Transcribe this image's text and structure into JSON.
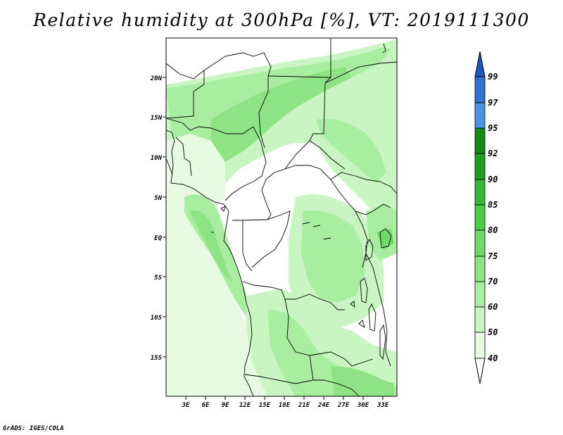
{
  "title": "Relative humidity at 300hPa [%], VT: 2019111300",
  "credit": "GrADS: IGES/COLA",
  "map": {
    "lat_ticks": [
      "20N",
      "15N",
      "10N",
      "5N",
      "EQ",
      "5S",
      "10S",
      "15S"
    ],
    "lon_ticks": [
      "3E",
      "6E",
      "9E",
      "12E",
      "15E",
      "18E",
      "21E",
      "24E",
      "27E",
      "30E",
      "33E"
    ],
    "lon_range": [
      0,
      35
    ],
    "lat_range": [
      -20,
      25
    ]
  },
  "colorbar": {
    "labels": [
      "40",
      "50",
      "60",
      "70",
      "75",
      "80",
      "85",
      "90",
      "92",
      "95",
      "97",
      "99"
    ],
    "colors": [
      "#ffffff",
      "#e7fbe3",
      "#c9f5c2",
      "#a9eda0",
      "#8ee485",
      "#6fda65",
      "#4bcd45",
      "#35b833",
      "#1e9e1e",
      "#158a15",
      "#4a94e8",
      "#2f73d6",
      "#1c58c0"
    ]
  }
}
